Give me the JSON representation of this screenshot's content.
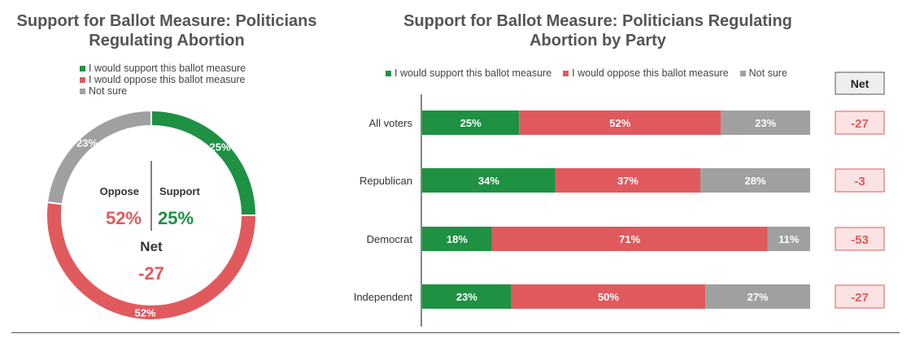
{
  "left_title": "Support for Ballot Measure: Politicians Regulating Abortion",
  "right_title": "Support for Ballot Measure: Politicians Regulating Abortion by Party",
  "legend": [
    {
      "label": "I would support this ballot measure",
      "color": "#1e9143"
    },
    {
      "label": "I would oppose this ballot measure",
      "color": "#e05a5d"
    },
    {
      "label": "Not sure",
      "color": "#a0a0a0"
    }
  ],
  "donut_center": {
    "oppose_label": "Oppose",
    "support_label": "Support",
    "oppose_value": "52%",
    "support_value": "25%",
    "net_label": "Net",
    "net_value": "-27"
  },
  "net_header": "Net",
  "chart_data": [
    {
      "type": "pie",
      "title": "Support for Ballot Measure: Politicians Regulating Abortion",
      "categories": [
        "I would support this ballot measure",
        "I would oppose this ballot measure",
        "Not sure"
      ],
      "values": [
        25,
        52,
        23
      ],
      "labels": [
        "25%",
        "52%",
        "23%"
      ],
      "colors": [
        "#1e9143",
        "#e05a5d",
        "#a0a0a0"
      ]
    },
    {
      "type": "bar",
      "stacked": true,
      "orientation": "horizontal",
      "title": "Support for Ballot Measure: Politicians Regulating Abortion by Party",
      "categories": [
        "All voters",
        "Republican",
        "Democrat",
        "Independent"
      ],
      "series": [
        {
          "name": "I would support this ballot measure",
          "values": [
            25,
            34,
            18,
            23
          ],
          "labels": [
            "25%",
            "34%",
            "18%",
            "23%"
          ],
          "color": "#1e9143"
        },
        {
          "name": "I would oppose this ballot measure",
          "values": [
            52,
            37,
            71,
            50
          ],
          "labels": [
            "52%",
            "37%",
            "71%",
            "50%"
          ],
          "color": "#e05a5d"
        },
        {
          "name": "Not sure",
          "values": [
            23,
            28,
            11,
            27
          ],
          "labels": [
            "23%",
            "28%",
            "11%",
            "27%"
          ],
          "color": "#a0a0a0"
        }
      ],
      "net_label": "Net",
      "net": [
        "-27",
        "-3",
        "-53",
        "-27"
      ]
    }
  ]
}
